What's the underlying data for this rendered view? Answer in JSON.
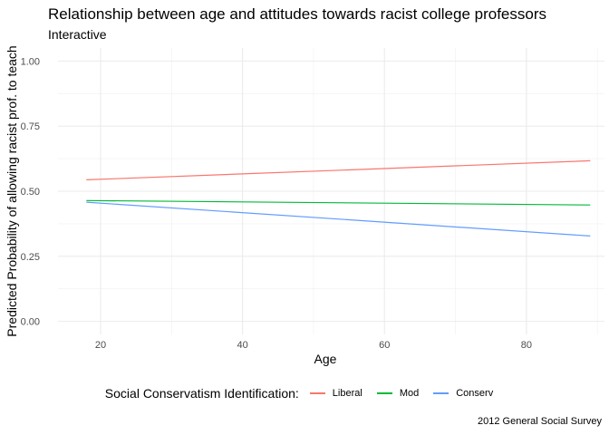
{
  "chart_data": {
    "type": "line",
    "title": "Relationship between age and attitudes towards racist college professors",
    "subtitle": "Interactive",
    "caption": "2012 General Social Survey",
    "xlabel": "Age",
    "ylabel": "Predicted Probability of allowing racist prof. to teach",
    "xlim": [
      14,
      91
    ],
    "ylim": [
      -0.05,
      1.05
    ],
    "x_ticks": [
      20,
      40,
      60,
      80
    ],
    "x_tick_labels": [
      "20",
      "40",
      "60",
      "80"
    ],
    "y_ticks": [
      0,
      0.25,
      0.5,
      0.75,
      1.0
    ],
    "y_tick_labels": [
      "0.00",
      "0.25",
      "0.50",
      "0.75",
      "1.00"
    ],
    "grid": true,
    "legend_title": "Social Conservatism Identification:",
    "legend_position": "bottom",
    "series": [
      {
        "name": "Liberal",
        "color": "#F8766D",
        "x": [
          18,
          89
        ],
        "y": [
          0.544,
          0.617
        ]
      },
      {
        "name": "Mod",
        "color": "#00BA38",
        "x": [
          18,
          89
        ],
        "y": [
          0.464,
          0.447
        ]
      },
      {
        "name": "Conserv",
        "color": "#619CFF",
        "x": [
          18,
          89
        ],
        "y": [
          0.458,
          0.328
        ]
      }
    ]
  }
}
